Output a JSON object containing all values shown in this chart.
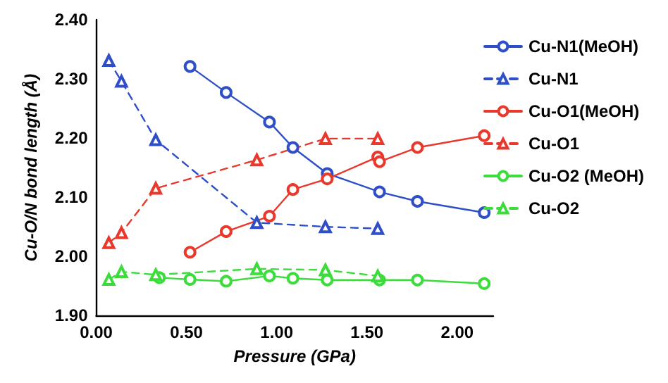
{
  "chart_data": {
    "type": "line",
    "xlabel": "Pressure (GPa)",
    "ylabel": "Cu-O/N bond length (Å)",
    "xlim": [
      0,
      2.2
    ],
    "xticks": [
      {
        "value": 0,
        "label": "0.00"
      },
      {
        "value": 0.5,
        "label": "0.50"
      },
      {
        "value": 1,
        "label": "1.00"
      },
      {
        "value": 1.5,
        "label": "1.50"
      },
      {
        "value": 2,
        "label": "2.00"
      }
    ],
    "ylim": [
      1.9,
      2.4
    ],
    "yticks": [
      {
        "value": 1.9,
        "label": "1.90"
      },
      {
        "value": 2.0,
        "label": "2.00"
      },
      {
        "value": 2.1,
        "label": "2.10"
      },
      {
        "value": 2.2,
        "label": "2.20"
      },
      {
        "value": 2.3,
        "label": "2.30"
      },
      {
        "value": 2.4,
        "label": "2.40"
      }
    ],
    "grid": false,
    "legend": "right",
    "series": [
      {
        "name": "Cu-N1(MeOH)",
        "color": "#2f4fc8",
        "marker": "circle",
        "line_style": "solid",
        "x": [
          0.52,
          0.72,
          0.96,
          1.09,
          1.28,
          1.57,
          1.78,
          2.15
        ],
        "values": [
          2.321,
          2.277,
          2.227,
          2.184,
          2.14,
          2.109,
          2.093,
          2.074
        ]
      },
      {
        "name": "Cu-N1",
        "color": "#2f4fc8",
        "marker": "triangle",
        "line_style": "dashed",
        "x": [
          0.07,
          0.14,
          0.33,
          0.89,
          1.27,
          1.56
        ],
        "values": [
          2.331,
          2.296,
          2.197,
          2.057,
          2.05,
          2.047
        ]
      },
      {
        "name": "Cu-O1(MeOH)",
        "color": "#e8392c",
        "marker": "circle",
        "line_style": "solid",
        "x": [
          0.52,
          0.72,
          0.96,
          1.09,
          1.28,
          1.56,
          1.57,
          1.78,
          2.15
        ],
        "values": [
          2.007,
          2.042,
          2.068,
          2.113,
          2.131,
          2.168,
          2.16,
          2.184,
          2.204
        ]
      },
      {
        "name": "Cu-O1",
        "color": "#e8392c",
        "marker": "triangle",
        "line_style": "dashed",
        "x": [
          0.07,
          0.14,
          0.33,
          0.89,
          1.27,
          1.56
        ],
        "values": [
          2.023,
          2.04,
          2.115,
          2.163,
          2.199,
          2.199
        ]
      },
      {
        "name": "Cu-O2 (MeOH)",
        "color": "#3ddc3d",
        "marker": "circle",
        "line_style": "solid",
        "x": [
          0.35,
          0.52,
          0.72,
          0.96,
          1.09,
          1.28,
          1.57,
          1.78,
          2.15
        ],
        "values": [
          1.964,
          1.961,
          1.958,
          1.967,
          1.963,
          1.96,
          1.96,
          1.96,
          1.954
        ]
      },
      {
        "name": "Cu-O2",
        "color": "#3ddc3d",
        "marker": "triangle",
        "line_style": "dashed",
        "x": [
          0.07,
          0.14,
          0.33,
          0.89,
          1.27,
          1.56
        ],
        "values": [
          1.961,
          1.974,
          1.969,
          1.979,
          1.977,
          1.967
        ]
      }
    ]
  }
}
